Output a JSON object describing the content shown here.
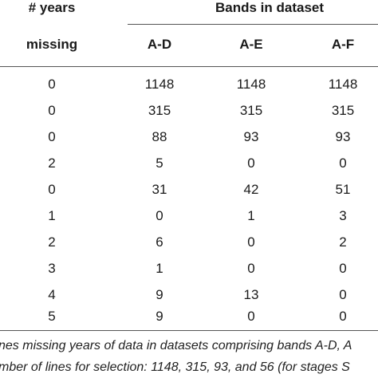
{
  "header": {
    "years_line1": "# years",
    "years_line2": "missing",
    "group_title": "Bands in dataset",
    "columns": [
      "A-D",
      "A-E",
      "A-F"
    ]
  },
  "rows": [
    [
      "0",
      "1148",
      "1148",
      "1148"
    ],
    [
      "0",
      "315",
      "315",
      "315"
    ],
    [
      "0",
      "88",
      "93",
      "93"
    ],
    [
      "2",
      "5",
      "0",
      "0"
    ],
    [
      "0",
      "31",
      "42",
      "51"
    ],
    [
      "1",
      "0",
      "1",
      "3"
    ],
    [
      "2",
      "6",
      "0",
      "2"
    ],
    [
      "3",
      "1",
      "0",
      "0"
    ],
    [
      "4",
      "9",
      "13",
      "0"
    ],
    [
      "5",
      "9",
      "0",
      "0"
    ]
  ],
  "caption": {
    "line1": "nes missing years of data in datasets comprising bands A-D, A",
    "line2": "mber of lines for selection: 1148, 315, 93, and 56 (for stages S"
  }
}
